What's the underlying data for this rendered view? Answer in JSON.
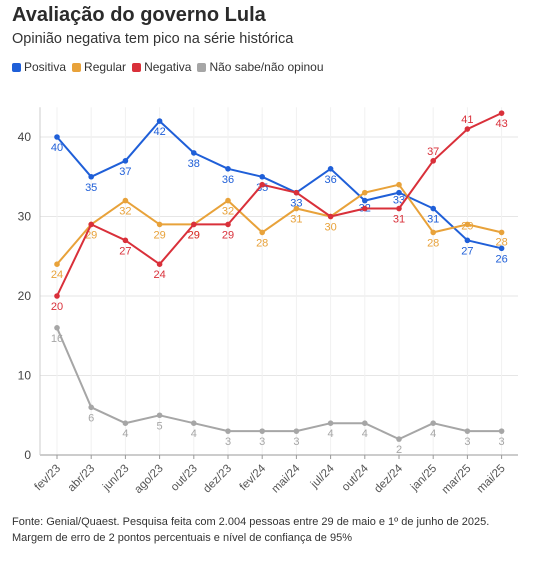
{
  "header": {
    "title": "Avaliação do governo Lula",
    "subtitle": "Opinião negativa tem pico na série histórica"
  },
  "footer": {
    "source": "Fonte: Genial/Quaest. Pesquisa feita com 2.004 pessoas entre 29 de maio e 1º de junho de 2025.",
    "margin": "Margem de erro de 2 pontos percentuais e nível de confiança de 95%"
  },
  "chart_data": {
    "type": "line",
    "title": "Avaliação do governo Lula",
    "subtitle": "Opinião negativa tem pico na série histórica",
    "xlabel": "",
    "ylabel": "",
    "ylim": [
      0,
      45
    ],
    "yticks": [
      0,
      10,
      20,
      30,
      40
    ],
    "grid": true,
    "legend_position": "top-left",
    "x_tick_labels": [
      "fev/23",
      "abr/23",
      "jun/23",
      "ago/23",
      "out/23",
      "dez/23",
      "fev/24",
      "mai/24",
      "jul/24",
      "out/24",
      "dez/24",
      "jan/25",
      "mar/25",
      "mai/25"
    ],
    "series": [
      {
        "name": "Positiva",
        "color": "#1f5fd8",
        "points": [
          {
            "x": 0,
            "y": 40,
            "label": "40"
          },
          {
            "x": 1,
            "y": 35,
            "label": "35"
          },
          {
            "x": 2,
            "y": 37,
            "label": "37"
          },
          {
            "x": 3,
            "y": 42,
            "label": "42"
          },
          {
            "x": 4,
            "y": 38,
            "label": "38"
          },
          {
            "x": 5,
            "y": 36,
            "label": "36"
          },
          {
            "x": 6,
            "y": 35,
            "label": "35"
          },
          {
            "x": 7,
            "y": 33,
            "label": "33"
          },
          {
            "x": 8,
            "y": 36,
            "label": "36"
          },
          {
            "x": 9,
            "y": 32,
            "label": "32"
          },
          {
            "x": 10,
            "y": 33,
            "label": "33"
          },
          {
            "x": 11,
            "y": 31,
            "label": "31"
          },
          {
            "x": 12,
            "y": 27,
            "label": "27"
          },
          {
            "x": 13,
            "y": 26,
            "label": "26"
          }
        ]
      },
      {
        "name": "Regular",
        "color": "#e8a23a",
        "points": [
          {
            "x": 0,
            "y": 24,
            "label": "24"
          },
          {
            "x": 1,
            "y": 29,
            "label": "29"
          },
          {
            "x": 2,
            "y": 32,
            "label": "32"
          },
          {
            "x": 3,
            "y": 29,
            "label": "29"
          },
          {
            "x": 4,
            "y": 29,
            "label": "29"
          },
          {
            "x": 5,
            "y": 32,
            "label": "32"
          },
          {
            "x": 6,
            "y": 28,
            "label": "28"
          },
          {
            "x": 7,
            "y": 31,
            "label": "31"
          },
          {
            "x": 8,
            "y": 30,
            "label": "30"
          },
          {
            "x": 9,
            "y": 33,
            "label": ""
          },
          {
            "x": 10,
            "y": 34,
            "label": ""
          },
          {
            "x": 11,
            "y": 28,
            "label": "28"
          },
          {
            "x": 12,
            "y": 29,
            "label": "29"
          },
          {
            "x": 13,
            "y": 28,
            "label": "28"
          }
        ]
      },
      {
        "name": "Negativa",
        "color": "#d9303a",
        "points": [
          {
            "x": 0,
            "y": 20,
            "label": "20"
          },
          {
            "x": 1,
            "y": 29,
            "label": ""
          },
          {
            "x": 2,
            "y": 27,
            "label": "27"
          },
          {
            "x": 3,
            "y": 24,
            "label": "24"
          },
          {
            "x": 4,
            "y": 29,
            "label": "29"
          },
          {
            "x": 5,
            "y": 29,
            "label": "29"
          },
          {
            "x": 6,
            "y": 34,
            "label": ""
          },
          {
            "x": 7,
            "y": 33,
            "label": ""
          },
          {
            "x": 8,
            "y": 30,
            "label": ""
          },
          {
            "x": 9,
            "y": 31,
            "label": ""
          },
          {
            "x": 10,
            "y": 31,
            "label": "31"
          },
          {
            "x": 11,
            "y": 37,
            "label": "37"
          },
          {
            "x": 12,
            "y": 41,
            "label": "41"
          },
          {
            "x": 13,
            "y": 43,
            "label": "43"
          }
        ]
      },
      {
        "name": "Não sabe/não opinou",
        "color": "#a6a6a6",
        "points": [
          {
            "x": 0,
            "y": 16,
            "label": "16"
          },
          {
            "x": 1,
            "y": 6,
            "label": "6"
          },
          {
            "x": 2,
            "y": 4,
            "label": "4"
          },
          {
            "x": 3,
            "y": 5,
            "label": "5"
          },
          {
            "x": 4,
            "y": 4,
            "label": "4"
          },
          {
            "x": 5,
            "y": 3,
            "label": "3"
          },
          {
            "x": 6,
            "y": 3,
            "label": "3"
          },
          {
            "x": 7,
            "y": 3,
            "label": "3"
          },
          {
            "x": 8,
            "y": 4,
            "label": "4"
          },
          {
            "x": 9,
            "y": 4,
            "label": "4"
          },
          {
            "x": 10,
            "y": 2,
            "label": "2"
          },
          {
            "x": 11,
            "y": 4,
            "label": "4"
          },
          {
            "x": 12,
            "y": 3,
            "label": "3"
          },
          {
            "x": 13,
            "y": 3,
            "label": "3"
          }
        ]
      }
    ]
  }
}
